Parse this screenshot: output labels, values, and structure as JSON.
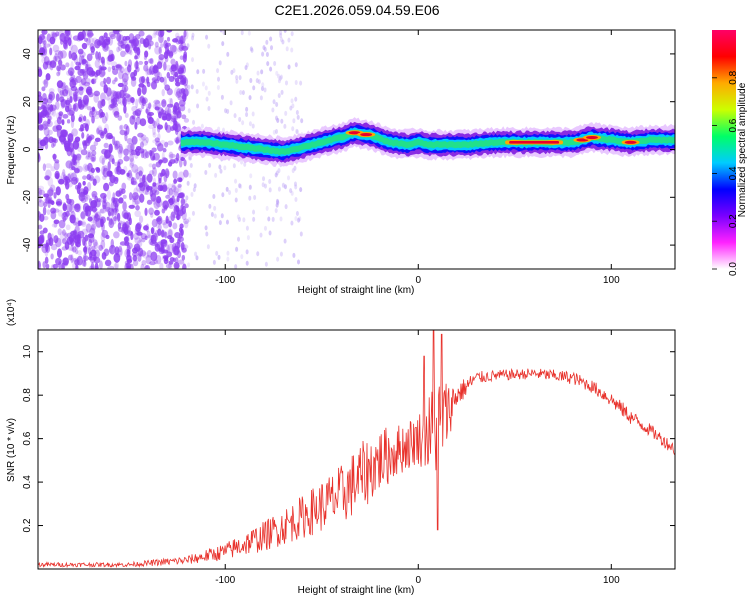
{
  "chart_data": [
    {
      "type": "heatmap",
      "title": "C2E1.2026.059.04.59.E06",
      "xlabel": "Height of straight line (km)",
      "ylabel": "Frequency (Hz)",
      "xlim": [
        -197,
        133
      ],
      "ylim": [
        -50,
        50
      ],
      "x_ticks": [
        -100,
        0,
        100
      ],
      "x_tick_labels": [
        "-100",
        "0",
        "100"
      ],
      "y_ticks": [
        -40,
        -20,
        0,
        20,
        40
      ],
      "y_tick_labels": [
        "-40",
        "-20",
        "0",
        "20",
        "40"
      ],
      "colorbar": {
        "label": "Normalized spectral amplitude",
        "range": [
          0,
          1
        ],
        "ticks": [
          0.0,
          0.2,
          0.4,
          0.6,
          0.8
        ],
        "tick_labels": [
          "0.0",
          "0.2",
          "0.4",
          "0.6",
          "0.8"
        ],
        "colors": [
          "#ffffff",
          "#ff22ff",
          "#7a00ff",
          "#0000ff",
          "#00ccff",
          "#00ff66",
          "#ccff00",
          "#ffaa00",
          "#ff0000",
          "#ff0066"
        ]
      },
      "noise_region": {
        "x_range": [
          -197,
          -120
        ],
        "color": "#8c3cf0"
      },
      "ridge": {
        "x": [
          -123,
          -110,
          -100,
          -90,
          -80,
          -70,
          -60,
          -50,
          -40,
          -33,
          -25,
          -15,
          -5,
          0,
          5,
          15,
          25,
          40,
          60,
          80,
          90,
          100,
          110,
          120,
          133
        ],
        "y": [
          3,
          3,
          2,
          1,
          0,
          -1,
          1,
          3,
          5,
          7,
          6,
          3,
          2,
          3,
          2,
          2,
          2,
          3,
          3,
          3,
          5,
          4,
          3,
          4,
          4
        ],
        "peak_x": [
          -33,
          -27,
          50,
          70,
          85,
          90,
          110
        ]
      }
    },
    {
      "type": "line",
      "xlabel": "Height of straight line (km)",
      "ylabel": "SNR (10 * v/v)",
      "y_multiplier": "(x10⁴)",
      "xlim": [
        -197,
        133
      ],
      "ylim": [
        0,
        1.1
      ],
      "x_ticks": [
        -100,
        0,
        100
      ],
      "x_tick_labels": [
        "-100",
        "0",
        "100"
      ],
      "y_ticks": [
        0.2,
        0.4,
        0.6,
        0.8,
        1.0
      ],
      "y_tick_labels": [
        "0.2",
        "0.4",
        "0.6",
        "0.8",
        "1.0"
      ],
      "line_color": "#e8322c",
      "envelope": {
        "x": [
          -197,
          -150,
          -120,
          -100,
          -80,
          -60,
          -40,
          -30,
          -20,
          -10,
          0,
          5,
          10,
          15,
          20,
          30,
          40,
          60,
          80,
          90,
          100,
          110,
          120,
          133
        ],
        "y": [
          0.02,
          0.02,
          0.04,
          0.08,
          0.15,
          0.24,
          0.34,
          0.42,
          0.5,
          0.55,
          0.6,
          0.62,
          0.66,
          0.72,
          0.8,
          0.88,
          0.89,
          0.9,
          0.88,
          0.84,
          0.78,
          0.7,
          0.64,
          0.55
        ],
        "noise_amp": [
          0.01,
          0.01,
          0.02,
          0.04,
          0.07,
          0.1,
          0.14,
          0.16,
          0.15,
          0.12,
          0.12,
          0.18,
          0.25,
          0.15,
          0.06,
          0.03,
          0.025,
          0.025,
          0.03,
          0.03,
          0.035,
          0.035,
          0.03,
          0.03
        ]
      },
      "spikes": [
        {
          "x": 8,
          "y": 1.1
        },
        {
          "x": 12,
          "y": 1.08
        },
        {
          "x": 10,
          "y": 0.18
        },
        {
          "x": 3,
          "y": 0.98
        }
      ]
    }
  ]
}
